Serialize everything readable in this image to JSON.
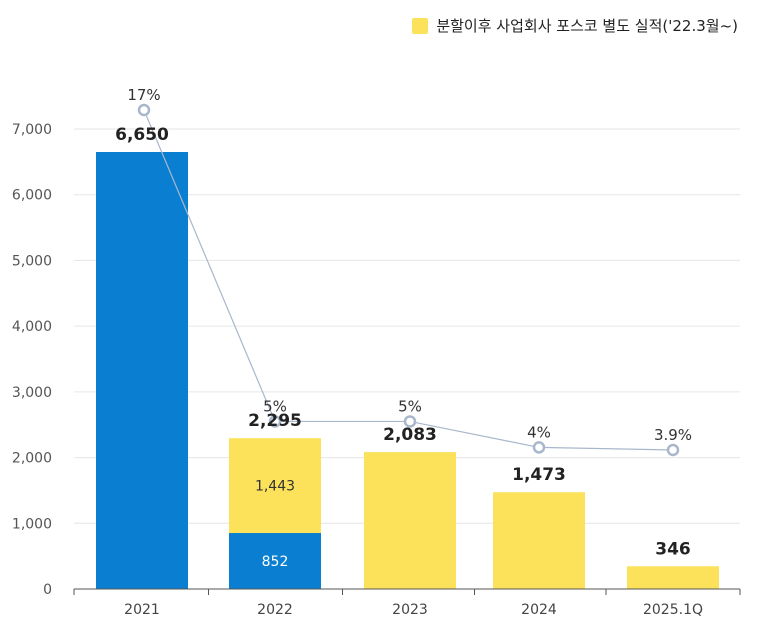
{
  "legend": {
    "label": "분할이후 사업회사 포스코 별도 실적('22.3월~)",
    "color": "#FCE25A"
  },
  "colors": {
    "blue": "#0A7FD1",
    "yellow": "#FCE25A",
    "line": "#A9B7CC",
    "grid": "#E6E6E6",
    "axis": "#555555"
  },
  "chart_data": {
    "type": "bar",
    "stacked": true,
    "categories": [
      "2021",
      "2022",
      "2023",
      "2024",
      "2025.1Q"
    ],
    "series": [
      {
        "color": "#0A7FD1",
        "values": [
          6650,
          852,
          0,
          0,
          0
        ],
        "labels": [
          "",
          "852",
          "",
          "",
          ""
        ]
      },
      {
        "name": "분할이후 사업회사 포스코 별도 실적('22.3월~)",
        "color": "#FCE25A",
        "values": [
          0,
          1443,
          2083,
          1473,
          346
        ],
        "labels": [
          "",
          "1,443",
          "",
          "",
          ""
        ]
      }
    ],
    "totals": [
      6650,
      2295,
      2083,
      1473,
      346
    ],
    "total_labels": [
      "6,650",
      "2,295",
      "2,083",
      "1,473",
      "346"
    ],
    "line": {
      "values": [
        17,
        5,
        5,
        4,
        3.9
      ],
      "labels": [
        "17%",
        "5%",
        "5%",
        "4%",
        "3.9%"
      ]
    },
    "yticks": [
      0,
      1000,
      2000,
      3000,
      4000,
      5000,
      6000,
      7000
    ],
    "ytick_labels": [
      "0",
      "1,000",
      "2,000",
      "3,000",
      "4,000",
      "5,000",
      "6,000",
      "7,000"
    ],
    "ylim": [
      0,
      7000
    ],
    "grid": true,
    "legend_position": "top-right"
  }
}
